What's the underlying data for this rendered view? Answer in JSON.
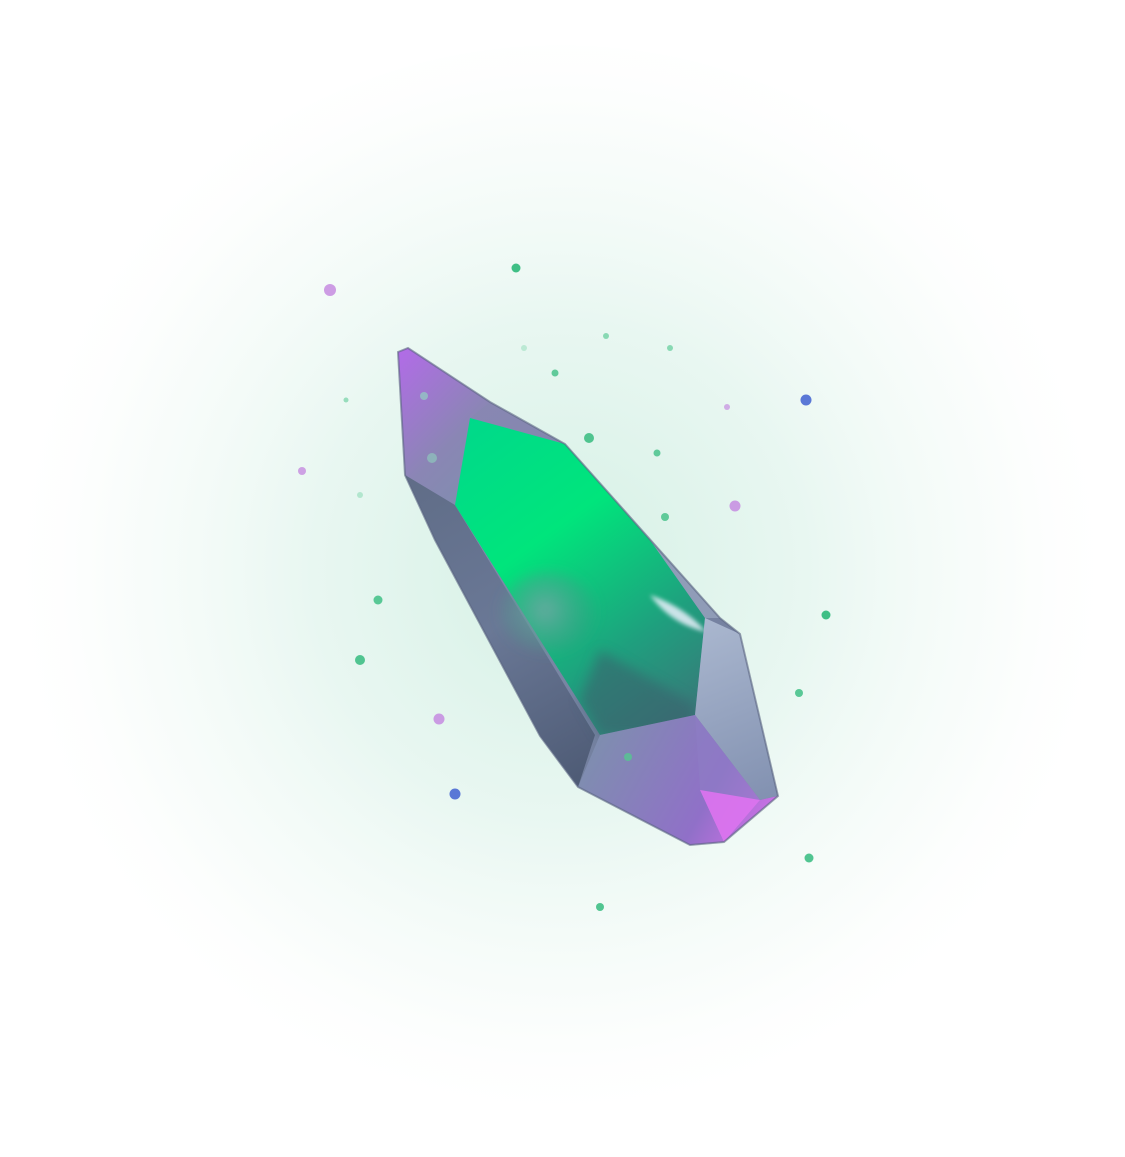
{
  "colors": {
    "background": "#ffffff",
    "glow": "#d8f0e6",
    "crystal_body": "#7f8aa8",
    "crystal_dark": "#4e5a73",
    "crystal_light": "#a9b6cc",
    "core_green": "#00e07e",
    "core_teal": "#2f8f86",
    "accent_magenta": "#d86ef2",
    "accent_violet": "#a463d6",
    "sparkle_green": "#3fbf85",
    "sparkle_purple": "#c58be0",
    "sparkle_blue": "#5a78d6"
  },
  "icons": {
    "crystal": "crystal-icon",
    "sparkles": "sparkle-icon"
  }
}
